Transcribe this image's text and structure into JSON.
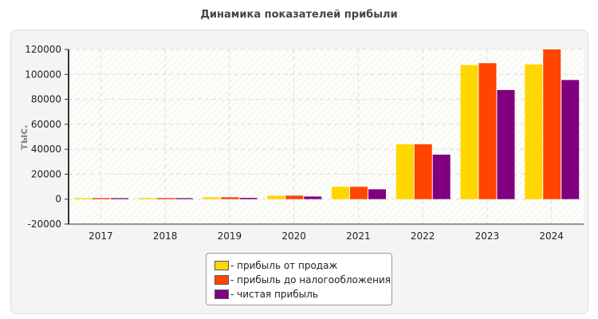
{
  "chart_data": {
    "type": "bar",
    "title": "Динамика показателей прибыли",
    "ylabel": "тыс.",
    "xlabel": "",
    "ylim": [
      -20000,
      120000
    ],
    "yticks": [
      -20000,
      0,
      20000,
      40000,
      60000,
      80000,
      100000,
      120000
    ],
    "grid": true,
    "legend_position": "bottom",
    "categories": [
      "2017",
      "2018",
      "2019",
      "2020",
      "2021",
      "2022",
      "2023",
      "2024"
    ],
    "series": [
      {
        "name": "- прибыль от продаж",
        "color": "#FFD700",
        "values": [
          900,
          900,
          1500,
          2800,
          9900,
          44000,
          107500,
          108000
        ]
      },
      {
        "name": "- прибыль до налогообложения",
        "color": "#FF4500",
        "values": [
          900,
          900,
          1500,
          2800,
          9900,
          44000,
          109000,
          121000
        ]
      },
      {
        "name": "- чистая прибыль",
        "color": "#800080",
        "values": [
          800,
          800,
          1000,
          2100,
          7900,
          35700,
          87500,
          95500
        ]
      }
    ]
  }
}
